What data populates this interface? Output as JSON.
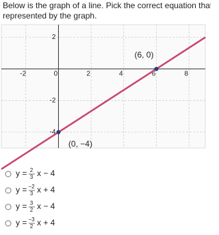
{
  "question": {
    "lines": [
      "Below is the graph of a line. Pick the correct equation that is",
      "represented by the graph."
    ]
  },
  "graph": {
    "xlim": [
      -3.5,
      9
    ],
    "ylim": [
      -5,
      2.8
    ],
    "xticks": [
      -2,
      0,
      2,
      4,
      6,
      8
    ],
    "yticks": [
      2,
      -2,
      -4
    ],
    "line_color": "#c8456f",
    "point_color": "#2b3a7a",
    "points": [
      {
        "x": 6,
        "y": 0,
        "label": "(6, 0)"
      },
      {
        "x": 0,
        "y": -4,
        "label": "(0, −4)"
      }
    ]
  },
  "options": [
    {
      "lead": "y =",
      "num": "2",
      "den": "3",
      "tail": "x − 4"
    },
    {
      "lead": "y =",
      "num": "−2",
      "den": "3",
      "tail": "x + 4"
    },
    {
      "lead": "y =",
      "num": "3",
      "den": "2",
      "tail": "x − 4"
    },
    {
      "lead": "y =",
      "num": "−3",
      "den": "2",
      "tail": "x + 4"
    }
  ]
}
